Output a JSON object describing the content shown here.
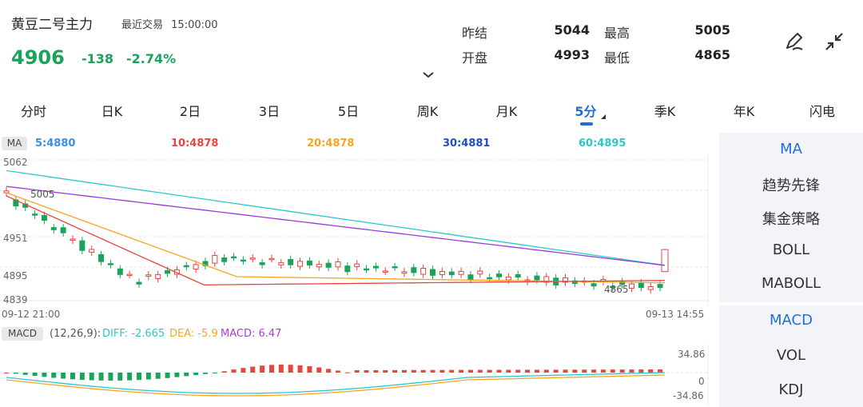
{
  "header": {
    "symbol_name": "黄豆二号主力",
    "recent_trade_label": "最近交易",
    "recent_trade_time": "15:00:00",
    "last_price": "4906",
    "change": "-138",
    "change_pct": "-2.74%"
  },
  "stats": {
    "prev_settle_label": "昨结",
    "prev_settle": "5044",
    "high_label": "最高",
    "high": "5005",
    "open_label": "开盘",
    "open": "4993",
    "low_label": "最低",
    "low": "4865"
  },
  "tabs": [
    "分时",
    "日K",
    "2日",
    "3日",
    "5日",
    "周K",
    "月K",
    "5分",
    "季K",
    "年K",
    "闪电"
  ],
  "active_tab": "5分",
  "ma_legend": {
    "badge": "MA",
    "items": [
      {
        "text": "5:4880",
        "color": "#3a8ee6"
      },
      {
        "text": "10:4878",
        "color": "#e8453c"
      },
      {
        "text": "20:4878",
        "color": "#f5a623"
      },
      {
        "text": "30:4881",
        "color": "#1f4fbf"
      },
      {
        "text": "60:4895",
        "color": "#2ec7c9"
      }
    ]
  },
  "chart_data": {
    "type": "candlestick",
    "y_ticks": [
      "5062",
      "4951",
      "4895",
      "4839"
    ],
    "ylim": [
      4839,
      5062
    ],
    "x_labels": [
      "09-12 21:00",
      "09-13 14:55"
    ],
    "high_marker": "5005",
    "low_marker": "4865",
    "ma60_approx": [
      5045,
      5000,
      4950,
      4900
    ],
    "ma30_approx": [
      5020,
      4970,
      4920,
      4895
    ]
  },
  "macd": {
    "badge": "MACD",
    "params": "(12,26,9):",
    "diff": "DIFF: -2.665",
    "dea": "DEA: -5.9",
    "macd": "MACD: 6.47",
    "y_top": "34.86",
    "y_zero": "0",
    "y_bottom": "-34.86"
  },
  "sidebar": {
    "top": [
      "MA",
      "趋势先锋",
      "集金策略",
      "BOLL",
      "MABOLL"
    ],
    "bottom": [
      "MACD",
      "VOL",
      "KDJ"
    ]
  },
  "colors": {
    "up": "#e8453c",
    "down": "#1aa35a",
    "accent": "#1e6fd9"
  }
}
